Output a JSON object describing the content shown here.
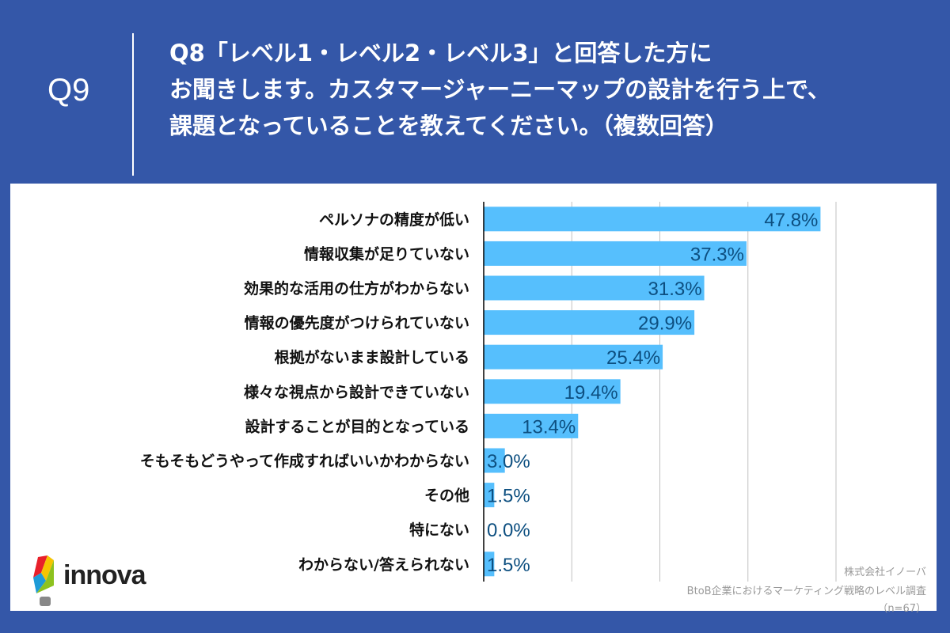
{
  "header": {
    "question_number": "Q9",
    "question_lines": [
      "Q8「レベル1・レベル2・レベル3」と回答した方に",
      "お聞きします。カスタマージャーニーマップの設計を行う上で、",
      "課題となっていることを教えてください。（複数回答）"
    ]
  },
  "colors": {
    "background": "#3457a8",
    "bar": "#56bffd",
    "value_label": "#0d4f80",
    "grid": "#c0c0c0"
  },
  "chart_data": {
    "type": "bar",
    "orientation": "horizontal",
    "categories": [
      "ペルソナの精度が低い",
      "情報収集が足りていない",
      "効果的な活用の仕方がわからない",
      "情報の優先度がつけられていない",
      "根拠がないまま設計している",
      "様々な視点から設計できていない",
      "設計することが目的となっている",
      "そもそもどうやって作成すればいいかわからない",
      "その他",
      "特にない",
      "わからない/答えられない"
    ],
    "values": [
      47.8,
      37.3,
      31.3,
      29.9,
      25.4,
      19.4,
      13.4,
      3.0,
      1.5,
      0.0,
      1.5
    ],
    "value_labels": [
      "47.8%",
      "37.3%",
      "31.3%",
      "29.9%",
      "25.4%",
      "19.4%",
      "13.4%",
      "3.0%",
      "1.5%",
      "0.0%",
      "1.5%"
    ],
    "xlim": [
      0,
      50
    ],
    "grid": true,
    "grid_ticks": [
      12.5,
      25,
      37.5,
      50
    ]
  },
  "logo": {
    "text": "innova"
  },
  "source": {
    "company": "株式会社イノーバ",
    "survey": "BtoB企業におけるマーケティング戦略のレベル調査",
    "sample": "（n=67）"
  }
}
